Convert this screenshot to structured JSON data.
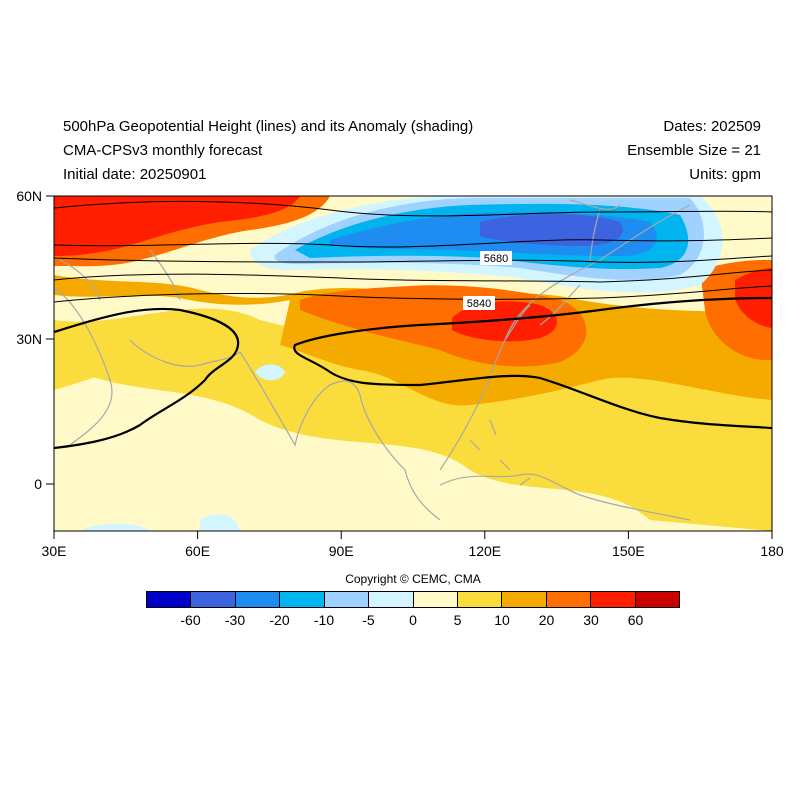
{
  "header": {
    "title": "500hPa Geopotential Height (lines) and its Anomaly (shading)",
    "subtitle": "CMA-CPSv3 monthly forecast",
    "initial_date": "Initial date: 20250901",
    "dates": "Dates: 202509",
    "ensemble": "Ensemble Size = 21",
    "units": "Units: gpm"
  },
  "map": {
    "lat_range": [
      -10,
      60
    ],
    "lon_range": [
      30,
      180
    ],
    "y_ticks": [
      "60N",
      "30N",
      "0"
    ],
    "x_ticks": [
      "30E",
      "60E",
      "90E",
      "120E",
      "150E",
      "180"
    ],
    "contour_labels": [
      "5680",
      "5840"
    ]
  },
  "copyright": "Copyright © CEMC, CMA",
  "colorbar": {
    "labels": [
      "-60",
      "-30",
      "-20",
      "-10",
      "-5",
      "0",
      "5",
      "10",
      "20",
      "30",
      "60"
    ],
    "colors": [
      "#0000c8",
      "#3c64e1",
      "#1e8cf0",
      "#00b4f0",
      "#a0d2ff",
      "#d2f5ff",
      "#fffac8",
      "#fadc3c",
      "#f5aa00",
      "#ff6e00",
      "#ff1e00",
      "#c80000"
    ]
  }
}
